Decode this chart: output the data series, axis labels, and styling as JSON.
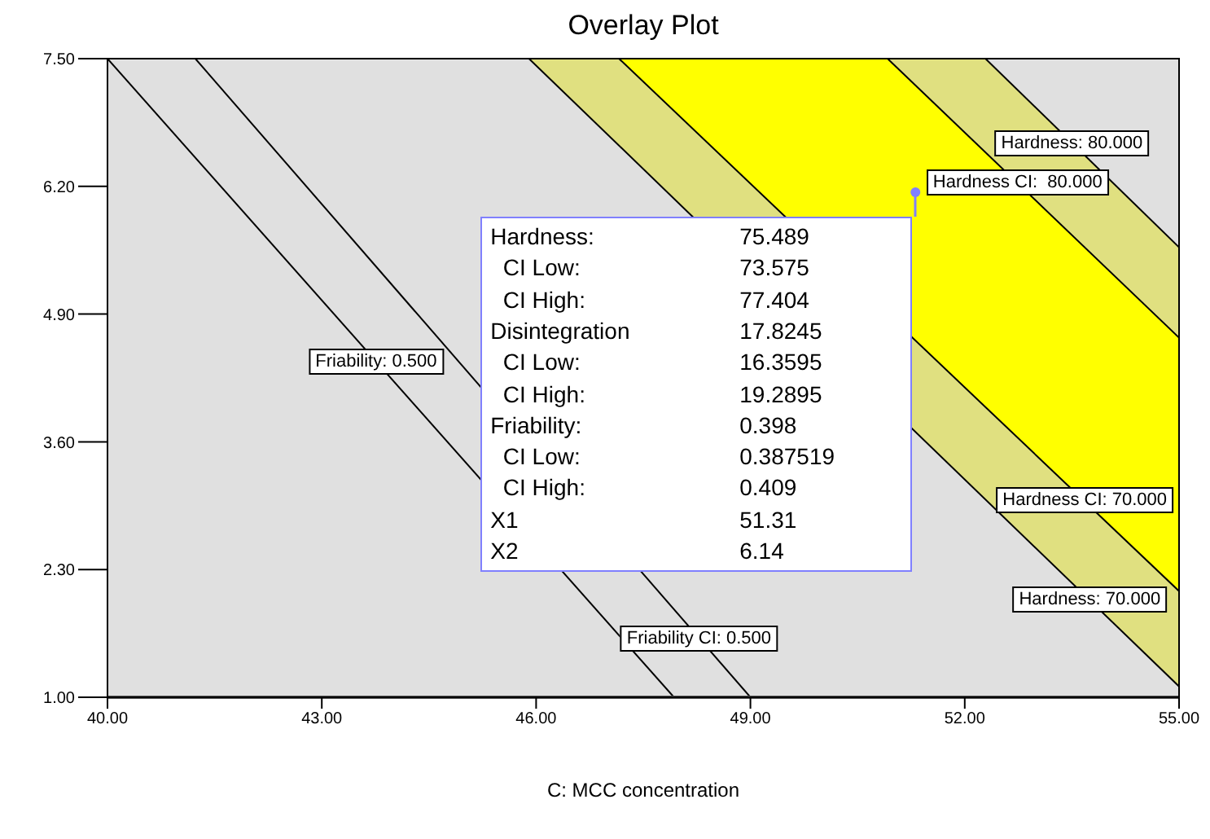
{
  "chart_data": {
    "type": "line",
    "title": "Overlay Plot",
    "xlabel": "C: MCC concentration",
    "xlim": [
      40,
      55
    ],
    "xticks": [
      {
        "value": 40,
        "label": "40.00"
      },
      {
        "value": 43,
        "label": "43.00"
      },
      {
        "value": 46,
        "label": "46.00"
      },
      {
        "value": 49,
        "label": "49.00"
      },
      {
        "value": 52,
        "label": "52.00"
      },
      {
        "value": 55,
        "label": "55.00"
      }
    ],
    "ylim": [
      1,
      7.5
    ],
    "yticks": [
      {
        "value": 1,
        "label": "1.00"
      },
      {
        "value": 2.3,
        "label": "2.30"
      },
      {
        "value": 3.6,
        "label": "3.60"
      },
      {
        "value": 4.9,
        "label": "4.90"
      },
      {
        "value": 6.2,
        "label": "6.20"
      },
      {
        "value": 7.5,
        "label": "7.50"
      }
    ],
    "marker": "none",
    "series": [
      {
        "color": "#000000",
        "x": [
          45.9,
          55
        ],
        "values": [
          7.5,
          1.11
        ]
      },
      {
        "color": "#000000",
        "x": [
          47.16,
          55
        ],
        "values": [
          7.5,
          2.08
        ]
      },
      {
        "color": "#000000",
        "x": [
          50.92,
          55
        ],
        "values": [
          7.5,
          4.66
        ]
      },
      {
        "color": "#000000",
        "x": [
          52.29,
          55
        ],
        "values": [
          7.5,
          5.58
        ]
      },
      {
        "color": "#000000",
        "x": [
          40,
          47.93
        ],
        "values": [
          7.5,
          1.0
        ]
      },
      {
        "color": "#000000",
        "x": [
          41.23,
          49.0
        ],
        "values": [
          7.5,
          1.0
        ]
      },
      {
        "type": "scatter",
        "color": "#8080ff",
        "marker": "circle",
        "x": [
          51.31
        ],
        "values": [
          6.14
        ]
      }
    ],
    "annotations": [
      {
        "text": "Friability: 0.500",
        "x": 43.76,
        "y": 4.42
      },
      {
        "text": "Friability CI: 0.500",
        "x": 48.28,
        "y": 1.6
      },
      {
        "text": "Hardness: 80.000",
        "x": 53.5,
        "y": 6.64
      },
      {
        "text": "Hardness CI:  80.000",
        "x": 52.74,
        "y": 6.24
      },
      {
        "text": "Hardness CI: 70.000",
        "x": 53.68,
        "y": 3.0
      },
      {
        "text": "Hardness: 70.000",
        "x": 53.75,
        "y": 2.0
      },
      "Hardness:",
      "75.489",
      "  CI Low:",
      "73.575",
      "  CI High:",
      "77.404",
      "Disintegration",
      "17.8245",
      "  CI Low:",
      "16.3595",
      "  CI High:",
      "19.2895",
      "Friability:",
      "0.398",
      "  CI Low:",
      "0.387519",
      "  CI High:",
      "0.409",
      "X1",
      "51.31",
      "X2",
      "6.14"
    ]
  }
}
